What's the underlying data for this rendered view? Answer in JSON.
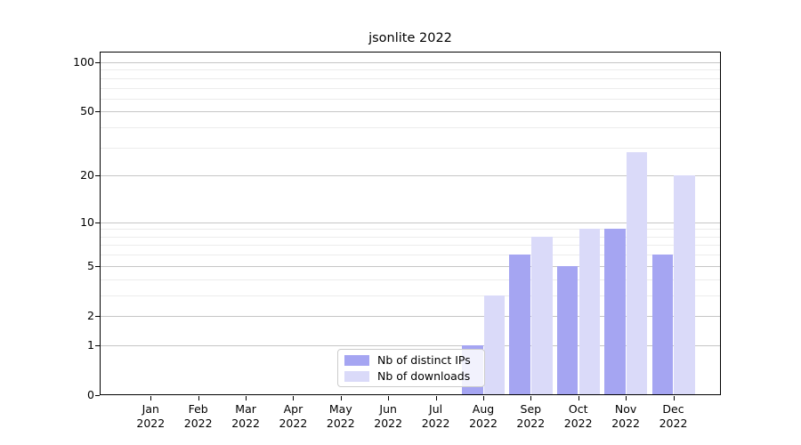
{
  "title": "jsonlite 2022",
  "chart_data": {
    "type": "bar",
    "title": "jsonlite 2022",
    "categories": [
      "Jan",
      "Feb",
      "Mar",
      "Apr",
      "May",
      "Jun",
      "Jul",
      "Aug",
      "Sep",
      "Oct",
      "Nov",
      "Dec"
    ],
    "x_year_suffix": "2022",
    "series": [
      {
        "name": "Nb of distinct IPs",
        "color": "#a5a5f2",
        "values": [
          0,
          0,
          0,
          0,
          0,
          0,
          0,
          1,
          6,
          5,
          9,
          6
        ]
      },
      {
        "name": "Nb of downloads",
        "color": "#dadaf9",
        "values": [
          0,
          0,
          0,
          0,
          0,
          0,
          0,
          3,
          8,
          9,
          28,
          20
        ]
      }
    ],
    "yscale": "log1p",
    "ylim": [
      0,
      116
    ],
    "major_yticks": [
      0,
      1,
      2,
      5,
      10,
      20,
      50,
      100
    ],
    "minor_yticks": [
      3,
      4,
      6,
      7,
      8,
      9,
      30,
      40,
      60,
      70,
      80,
      90
    ],
    "grid": true,
    "legend_position": "lower center",
    "colors": {
      "major_grid": "#c6c6c6",
      "minor_grid": "#ececec",
      "spine": "#000000",
      "background": "#ffffff",
      "text": "#000000"
    }
  }
}
